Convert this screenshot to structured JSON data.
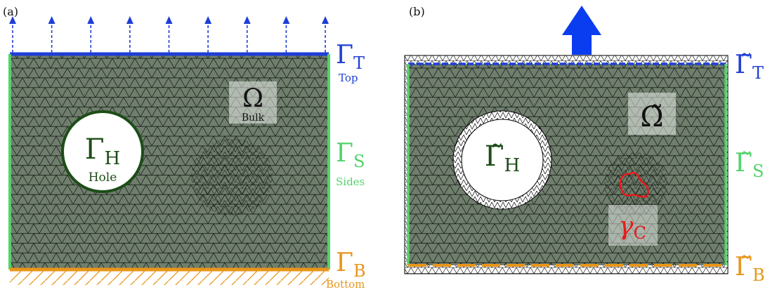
{
  "colors": {
    "mesh_fill": "#6f7e6d",
    "mesh_line": "#101510",
    "hole_ring": "#1d4d18",
    "hole_text": "#1d4d18",
    "top": "#1f3ed6",
    "sides": "#53d36a",
    "bottom": "#e8951a",
    "crack": "#e81a1a",
    "label_box": "#e8ece8",
    "arrow_big": "#0a3cf0"
  },
  "panel_a": {
    "tag": "(a)",
    "top_symbol": "Γ",
    "top_sub": "T",
    "top_caption": "Top",
    "sides_symbol": "Γ",
    "sides_sub": "S",
    "sides_caption": "Sides",
    "bottom_symbol": "Γ",
    "bottom_sub": "B",
    "bottom_caption": "Bottom",
    "hole_symbol": "Γ",
    "hole_sub": "H",
    "hole_caption": "Hole",
    "bulk_symbol": "Ω",
    "bulk_caption": "Bulk",
    "load_arrow_count": 9,
    "icons": [
      "dashed-arrow-icon",
      "hatch-support-icon"
    ]
  },
  "panel_b": {
    "tag": "(b)",
    "top_symbol": "Γ̃",
    "top_sub": "T",
    "sides_symbol": "Γ̃",
    "sides_sub": "S",
    "bottom_symbol": "Γ̃",
    "bottom_sub": "B",
    "hole_symbol": "Γ̃",
    "hole_sub": "H",
    "bulk_symbol": "Ω̃",
    "crack_symbol": "γ",
    "crack_sub": "C",
    "icons": [
      "big-up-arrow-icon"
    ]
  }
}
